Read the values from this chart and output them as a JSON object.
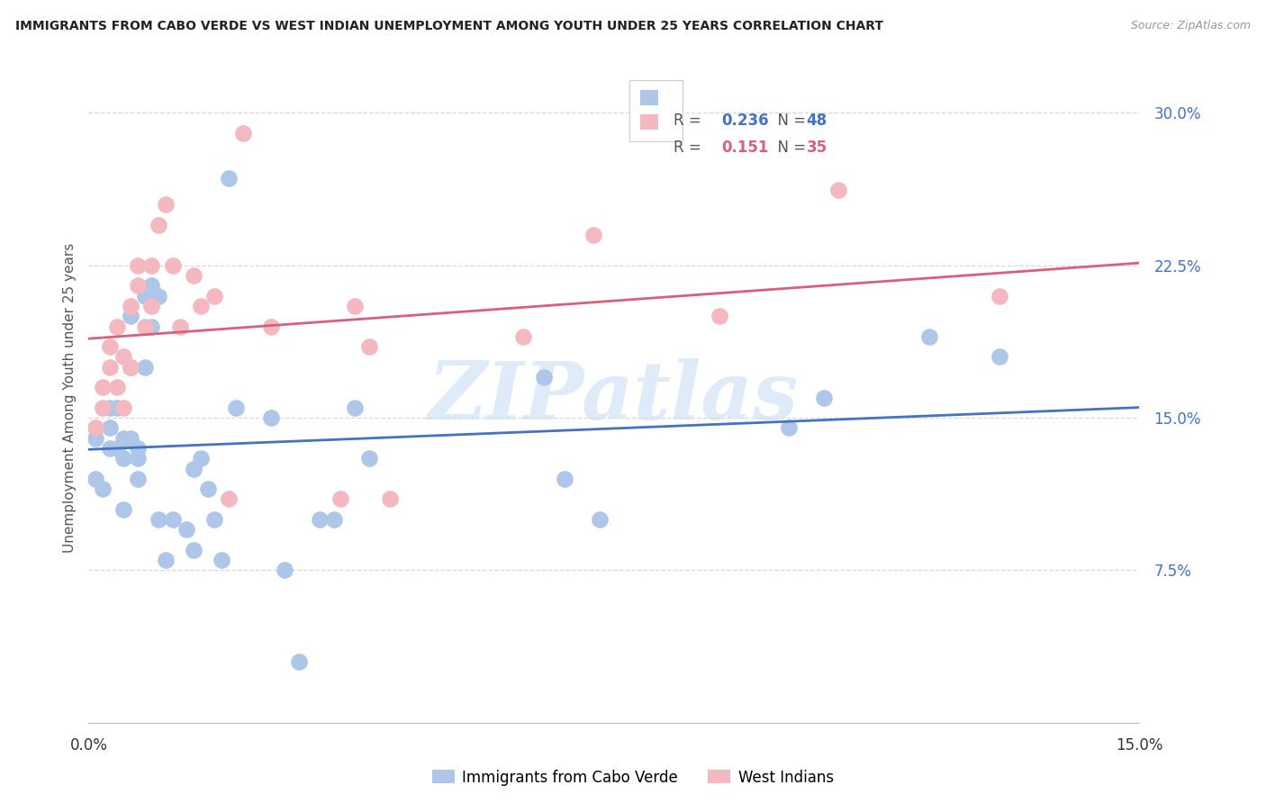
{
  "title": "IMMIGRANTS FROM CABO VERDE VS WEST INDIAN UNEMPLOYMENT AMONG YOUTH UNDER 25 YEARS CORRELATION CHART",
  "source": "Source: ZipAtlas.com",
  "ylabel": "Unemployment Among Youth under 25 years",
  "xlim": [
    0.0,
    0.15
  ],
  "ylim": [
    0.0,
    0.32
  ],
  "yticks": [
    0.075,
    0.15,
    0.225,
    0.3
  ],
  "ytick_labels": [
    "7.5%",
    "15.0%",
    "22.5%",
    "30.0%"
  ],
  "xticks": [
    0.0,
    0.05,
    0.1,
    0.15
  ],
  "xtick_labels": [
    "0.0%",
    "",
    "",
    "15.0%"
  ],
  "cabo_verde_R": "0.236",
  "cabo_verde_N": "48",
  "west_indian_R": "0.151",
  "west_indian_N": "35",
  "cabo_verde_color": "#aec6e8",
  "west_indian_color": "#f4b8c1",
  "cabo_verde_line_color": "#4472c4",
  "west_indian_line_color": "#d9607a",
  "background_color": "#ffffff",
  "grid_color": "#d8d8d8",
  "cabo_verde_x": [
    0.001,
    0.001,
    0.002,
    0.003,
    0.003,
    0.003,
    0.004,
    0.004,
    0.005,
    0.005,
    0.005,
    0.006,
    0.006,
    0.006,
    0.007,
    0.007,
    0.007,
    0.008,
    0.008,
    0.009,
    0.009,
    0.01,
    0.01,
    0.011,
    0.012,
    0.014,
    0.015,
    0.015,
    0.016,
    0.017,
    0.018,
    0.019,
    0.02,
    0.021,
    0.026,
    0.028,
    0.03,
    0.033,
    0.035,
    0.038,
    0.04,
    0.065,
    0.068,
    0.073,
    0.1,
    0.105,
    0.12,
    0.13
  ],
  "cabo_verde_y": [
    0.14,
    0.12,
    0.115,
    0.145,
    0.135,
    0.155,
    0.135,
    0.155,
    0.14,
    0.13,
    0.105,
    0.2,
    0.175,
    0.14,
    0.12,
    0.135,
    0.13,
    0.175,
    0.21,
    0.215,
    0.195,
    0.21,
    0.1,
    0.08,
    0.1,
    0.095,
    0.125,
    0.085,
    0.13,
    0.115,
    0.1,
    0.08,
    0.268,
    0.155,
    0.15,
    0.075,
    0.03,
    0.1,
    0.1,
    0.155,
    0.13,
    0.17,
    0.12,
    0.1,
    0.145,
    0.16,
    0.19,
    0.18
  ],
  "west_indian_x": [
    0.001,
    0.002,
    0.002,
    0.003,
    0.003,
    0.004,
    0.004,
    0.005,
    0.005,
    0.006,
    0.006,
    0.007,
    0.007,
    0.008,
    0.009,
    0.009,
    0.01,
    0.011,
    0.012,
    0.013,
    0.015,
    0.016,
    0.018,
    0.02,
    0.022,
    0.026,
    0.036,
    0.038,
    0.04,
    0.043,
    0.062,
    0.072,
    0.09,
    0.107,
    0.13
  ],
  "west_indian_y": [
    0.145,
    0.155,
    0.165,
    0.175,
    0.185,
    0.195,
    0.165,
    0.155,
    0.18,
    0.175,
    0.205,
    0.215,
    0.225,
    0.195,
    0.225,
    0.205,
    0.245,
    0.255,
    0.225,
    0.195,
    0.22,
    0.205,
    0.21,
    0.11,
    0.29,
    0.195,
    0.11,
    0.205,
    0.185,
    0.11,
    0.19,
    0.24,
    0.2,
    0.262,
    0.21
  ],
  "watermark": "ZIPatlas",
  "legend_label_cabo": "Immigrants from Cabo Verde",
  "legend_label_west": "West Indians"
}
